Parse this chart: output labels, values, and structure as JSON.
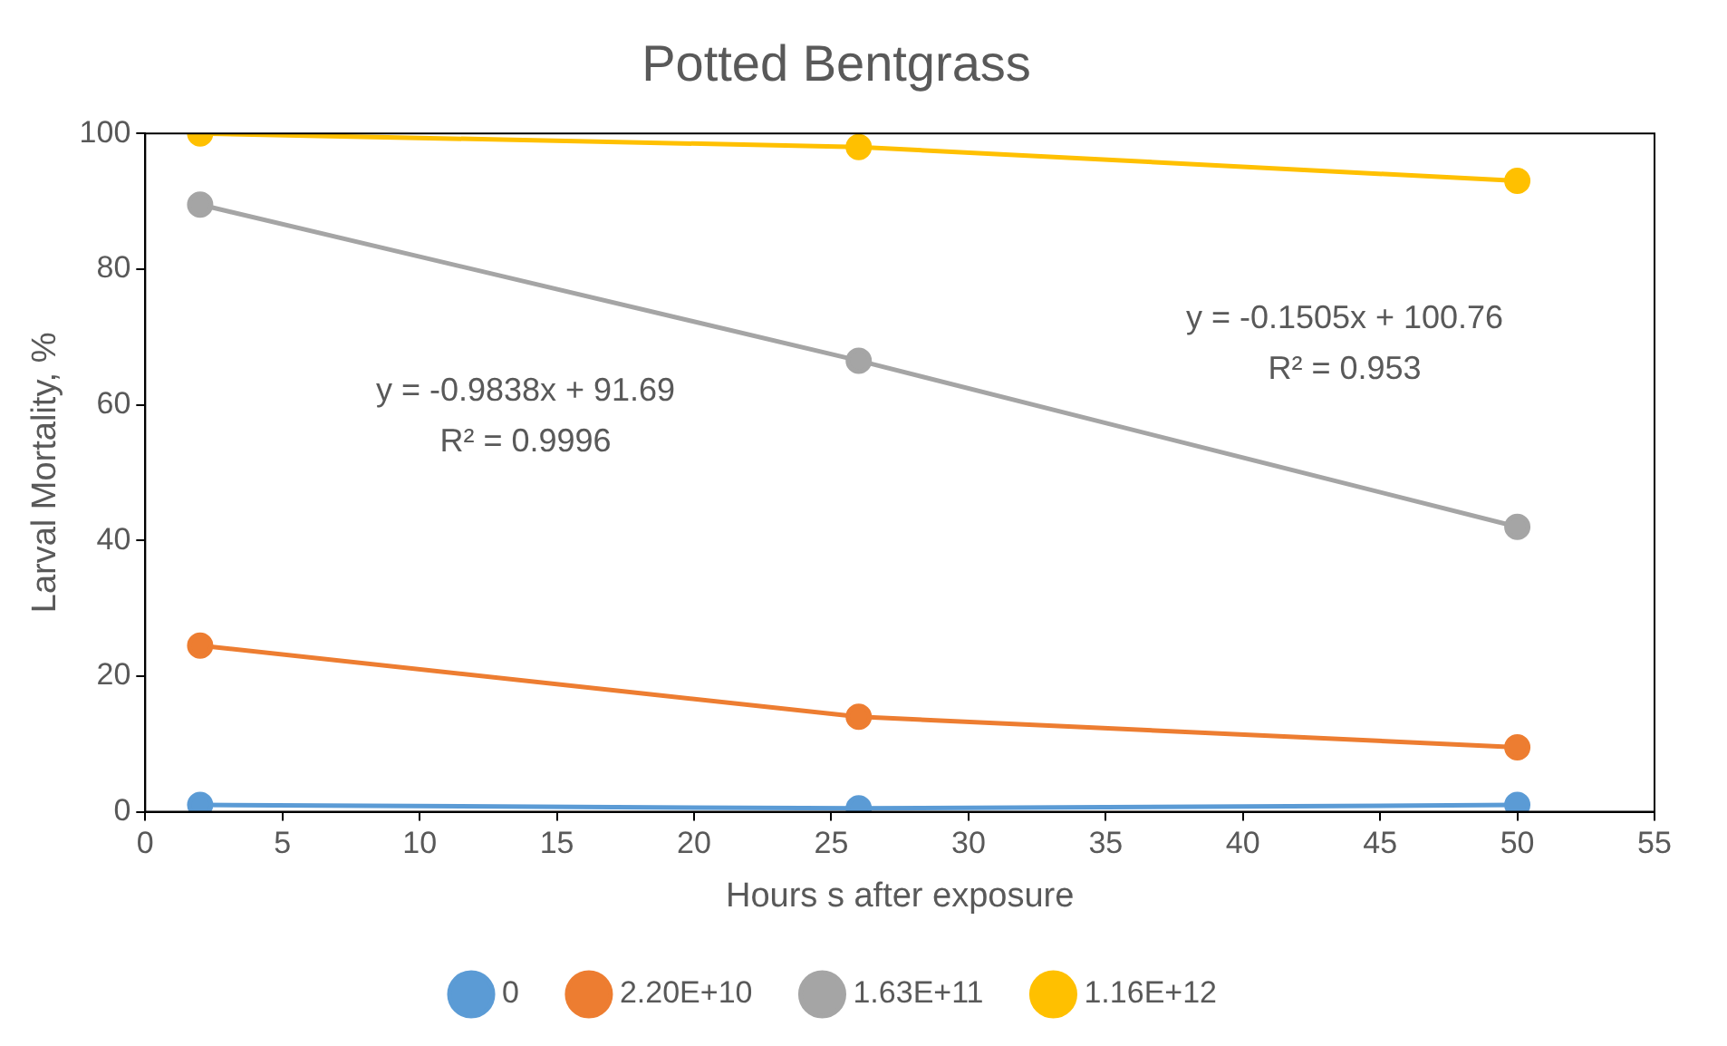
{
  "chart_data": {
    "type": "line",
    "title": "Potted Bentgrass",
    "xlabel": "Hours s after exposure",
    "ylabel": "Larval Mortality, %",
    "xlim": [
      0,
      55
    ],
    "xticks": [
      0,
      5,
      10,
      15,
      20,
      25,
      30,
      35,
      40,
      45,
      50,
      55
    ],
    "ylim": [
      0,
      100
    ],
    "yticks": [
      0,
      20,
      40,
      60,
      80,
      100
    ],
    "grid": false,
    "legend": "bottom",
    "marker": "circle",
    "line_style": "solid",
    "series": [
      {
        "name": "0",
        "color": "#5b9bd5",
        "x": [
          2,
          26,
          50
        ],
        "values": [
          1,
          0.5,
          1
        ]
      },
      {
        "name": "2.20E+10",
        "color": "#ed7d31",
        "x": [
          2,
          26,
          50
        ],
        "values": [
          24.5,
          14,
          9.5
        ]
      },
      {
        "name": "1.63E+11",
        "color": "#a5a5a5",
        "x": [
          2,
          26,
          50
        ],
        "values": [
          89.5,
          66.5,
          42
        ]
      },
      {
        "name": "1.16E+12",
        "color": "#ffc000",
        "x": [
          2,
          26,
          50
        ],
        "values": [
          100,
          98,
          93
        ]
      }
    ],
    "annotations": [
      "y = -0.9838x + 91.69",
      "R² = 0.9996",
      "y = -0.1505x + 100.76",
      "R² = 0.953"
    ]
  }
}
